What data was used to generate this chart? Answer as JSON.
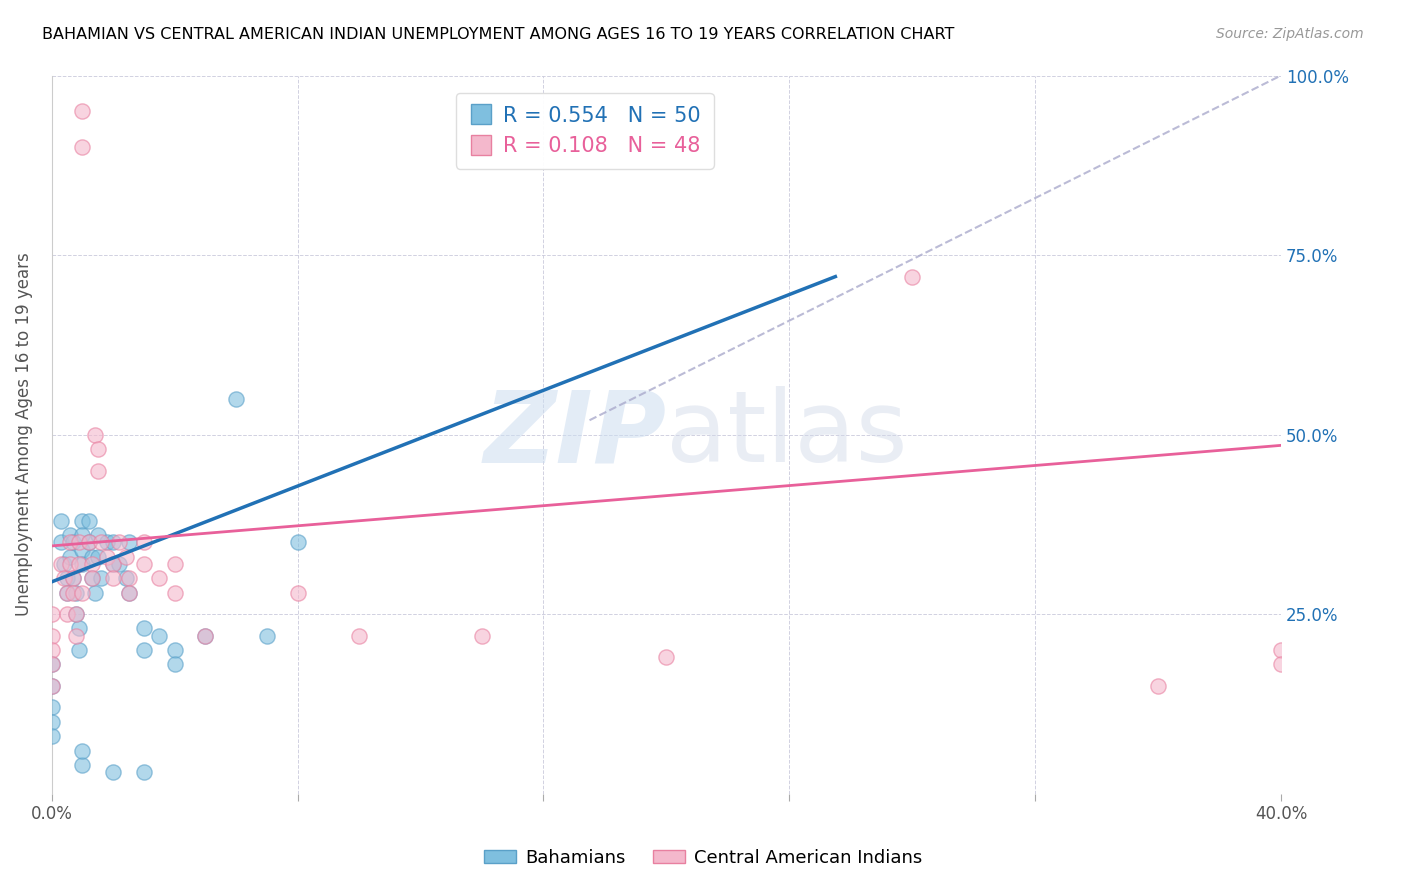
{
  "title": "BAHAMIAN VS CENTRAL AMERICAN INDIAN UNEMPLOYMENT AMONG AGES 16 TO 19 YEARS CORRELATION CHART",
  "source": "Source: ZipAtlas.com",
  "ylabel": "Unemployment Among Ages 16 to 19 years",
  "xlim": [
    0.0,
    0.4
  ],
  "ylim": [
    0.0,
    1.0
  ],
  "xticks": [
    0.0,
    0.08,
    0.16,
    0.24,
    0.32,
    0.4
  ],
  "xticklabels": [
    "0.0%",
    "",
    "",
    "",
    "",
    "40.0%"
  ],
  "yticks": [
    0.0,
    0.25,
    0.5,
    0.75,
    1.0
  ],
  "yticklabels_right": [
    "",
    "25.0%",
    "50.0%",
    "75.0%",
    "100.0%"
  ],
  "bahamian_color": "#7fbfdf",
  "bahamian_edge_color": "#5aa0c8",
  "central_american_color": "#f4b8cc",
  "central_american_edge_color": "#e880a0",
  "bahamian_R": 0.554,
  "bahamian_N": 50,
  "central_american_R": 0.108,
  "central_american_N": 48,
  "watermark_zip": "ZIP",
  "watermark_atlas": "atlas",
  "legend_labels": [
    "Bahamians",
    "Central American Indians"
  ],
  "blue_line_x": [
    0.0,
    0.255
  ],
  "blue_line_y": [
    0.295,
    0.72
  ],
  "pink_line_x": [
    0.0,
    0.4
  ],
  "pink_line_y": [
    0.345,
    0.485
  ],
  "diag_line_x": [
    0.175,
    0.4
  ],
  "diag_line_y": [
    0.52,
    1.0
  ],
  "bahamian_scatter": [
    [
      0.0,
      0.18
    ],
    [
      0.0,
      0.15
    ],
    [
      0.0,
      0.12
    ],
    [
      0.0,
      0.1
    ],
    [
      0.0,
      0.08
    ],
    [
      0.003,
      0.38
    ],
    [
      0.003,
      0.35
    ],
    [
      0.004,
      0.32
    ],
    [
      0.005,
      0.3
    ],
    [
      0.005,
      0.28
    ],
    [
      0.006,
      0.36
    ],
    [
      0.006,
      0.33
    ],
    [
      0.007,
      0.35
    ],
    [
      0.007,
      0.3
    ],
    [
      0.008,
      0.28
    ],
    [
      0.008,
      0.25
    ],
    [
      0.009,
      0.23
    ],
    [
      0.009,
      0.2
    ],
    [
      0.01,
      0.38
    ],
    [
      0.01,
      0.36
    ],
    [
      0.01,
      0.34
    ],
    [
      0.01,
      0.32
    ],
    [
      0.012,
      0.38
    ],
    [
      0.012,
      0.35
    ],
    [
      0.013,
      0.33
    ],
    [
      0.013,
      0.3
    ],
    [
      0.014,
      0.28
    ],
    [
      0.015,
      0.36
    ],
    [
      0.015,
      0.33
    ],
    [
      0.016,
      0.3
    ],
    [
      0.018,
      0.35
    ],
    [
      0.02,
      0.35
    ],
    [
      0.02,
      0.32
    ],
    [
      0.022,
      0.32
    ],
    [
      0.024,
      0.3
    ],
    [
      0.025,
      0.35
    ],
    [
      0.025,
      0.28
    ],
    [
      0.03,
      0.23
    ],
    [
      0.03,
      0.2
    ],
    [
      0.035,
      0.22
    ],
    [
      0.04,
      0.2
    ],
    [
      0.04,
      0.18
    ],
    [
      0.05,
      0.22
    ],
    [
      0.06,
      0.55
    ],
    [
      0.07,
      0.22
    ],
    [
      0.08,
      0.35
    ],
    [
      0.03,
      0.03
    ],
    [
      0.02,
      0.03
    ],
    [
      0.01,
      0.04
    ],
    [
      0.01,
      0.06
    ]
  ],
  "central_american_scatter": [
    [
      0.0,
      0.25
    ],
    [
      0.0,
      0.22
    ],
    [
      0.0,
      0.2
    ],
    [
      0.0,
      0.18
    ],
    [
      0.0,
      0.15
    ],
    [
      0.003,
      0.32
    ],
    [
      0.004,
      0.3
    ],
    [
      0.005,
      0.28
    ],
    [
      0.005,
      0.25
    ],
    [
      0.006,
      0.35
    ],
    [
      0.006,
      0.32
    ],
    [
      0.007,
      0.3
    ],
    [
      0.007,
      0.28
    ],
    [
      0.008,
      0.25
    ],
    [
      0.008,
      0.22
    ],
    [
      0.009,
      0.35
    ],
    [
      0.009,
      0.32
    ],
    [
      0.01,
      0.95
    ],
    [
      0.01,
      0.9
    ],
    [
      0.01,
      0.28
    ],
    [
      0.012,
      0.35
    ],
    [
      0.013,
      0.32
    ],
    [
      0.013,
      0.3
    ],
    [
      0.014,
      0.5
    ],
    [
      0.015,
      0.48
    ],
    [
      0.015,
      0.45
    ],
    [
      0.016,
      0.35
    ],
    [
      0.018,
      0.33
    ],
    [
      0.02,
      0.32
    ],
    [
      0.02,
      0.3
    ],
    [
      0.022,
      0.35
    ],
    [
      0.024,
      0.33
    ],
    [
      0.025,
      0.3
    ],
    [
      0.025,
      0.28
    ],
    [
      0.03,
      0.35
    ],
    [
      0.03,
      0.32
    ],
    [
      0.035,
      0.3
    ],
    [
      0.04,
      0.32
    ],
    [
      0.04,
      0.28
    ],
    [
      0.05,
      0.22
    ],
    [
      0.08,
      0.28
    ],
    [
      0.1,
      0.22
    ],
    [
      0.14,
      0.22
    ],
    [
      0.2,
      0.19
    ],
    [
      0.28,
      0.72
    ],
    [
      0.36,
      0.15
    ],
    [
      0.4,
      0.2
    ],
    [
      0.4,
      0.18
    ]
  ]
}
